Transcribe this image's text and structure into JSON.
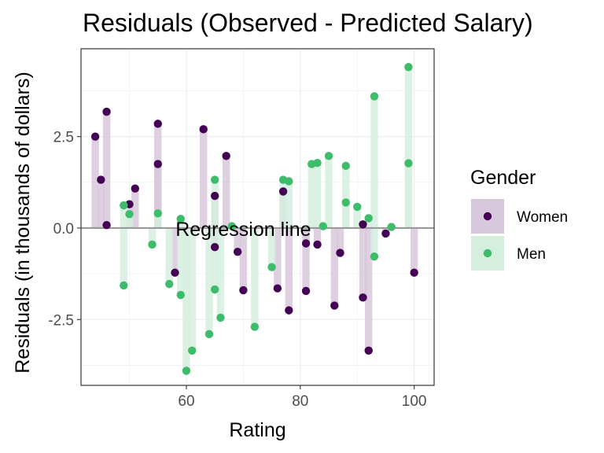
{
  "chart_data": {
    "type": "scatter",
    "title": "Residuals (Observed - Predicted Salary)",
    "xlabel": "Rating",
    "ylabel": "Residuals (in thousands of dollars)",
    "xlim": [
      41.5,
      103.5
    ],
    "ylim": [
      -4.3,
      4.9
    ],
    "xticks": [
      60,
      80,
      100
    ],
    "yticks": [
      -2.5,
      0.0,
      2.5
    ],
    "ytick_labels": [
      "-2.5",
      "0.0",
      "2.5"
    ],
    "grid": true,
    "background": "#ffffff",
    "reference_line": {
      "y": 0,
      "label": "Regression line",
      "label_x": 70,
      "color": "#999999"
    },
    "legend": {
      "title": "Gender",
      "position": "right"
    },
    "series": [
      {
        "name": "Women",
        "color": "#440154",
        "band_color": "#d8c8dc",
        "points": [
          [
            44,
            2.5
          ],
          [
            45,
            1.32
          ],
          [
            46,
            3.18
          ],
          [
            46,
            0.08
          ],
          [
            50,
            0.65
          ],
          [
            51,
            1.08
          ],
          [
            55,
            2.85
          ],
          [
            55,
            1.75
          ],
          [
            58,
            -1.22
          ],
          [
            63,
            2.7
          ],
          [
            65,
            0.88
          ],
          [
            65,
            -0.52
          ],
          [
            67,
            1.97
          ],
          [
            69,
            -0.65
          ],
          [
            70,
            -1.7
          ],
          [
            76,
            -1.65
          ],
          [
            77,
            1.0
          ],
          [
            78,
            -2.25
          ],
          [
            81,
            -0.42
          ],
          [
            81,
            -1.72
          ],
          [
            83,
            -0.45
          ],
          [
            86,
            -2.12
          ],
          [
            87,
            -0.68
          ],
          [
            91,
            0.1
          ],
          [
            91,
            -1.9
          ],
          [
            92,
            -3.35
          ],
          [
            95,
            -0.15
          ],
          [
            100,
            -1.22
          ]
        ]
      },
      {
        "name": "Men",
        "color": "#3dbc6a",
        "band_color": "#d5efdf",
        "points": [
          [
            49,
            0.62
          ],
          [
            49,
            -1.57
          ],
          [
            50,
            0.38
          ],
          [
            54,
            -0.45
          ],
          [
            55,
            0.4
          ],
          [
            57,
            -1.53
          ],
          [
            59,
            0.25
          ],
          [
            59,
            -1.83
          ],
          [
            60,
            -3.9
          ],
          [
            61,
            -3.35
          ],
          [
            64,
            -2.9
          ],
          [
            65,
            1.32
          ],
          [
            65,
            -1.68
          ],
          [
            66,
            -2.45
          ],
          [
            68,
            0.05
          ],
          [
            72,
            -2.7
          ],
          [
            75,
            -1.07
          ],
          [
            77,
            1.32
          ],
          [
            78,
            1.28
          ],
          [
            82,
            1.75
          ],
          [
            83,
            1.78
          ],
          [
            84,
            0.05
          ],
          [
            85,
            1.97
          ],
          [
            88,
            1.7
          ],
          [
            88,
            0.7
          ],
          [
            90,
            0.58
          ],
          [
            92,
            0.27
          ],
          [
            93,
            3.6
          ],
          [
            93,
            -0.78
          ],
          [
            96,
            0.03
          ],
          [
            99,
            4.4
          ],
          [
            99,
            1.77
          ]
        ]
      }
    ]
  }
}
